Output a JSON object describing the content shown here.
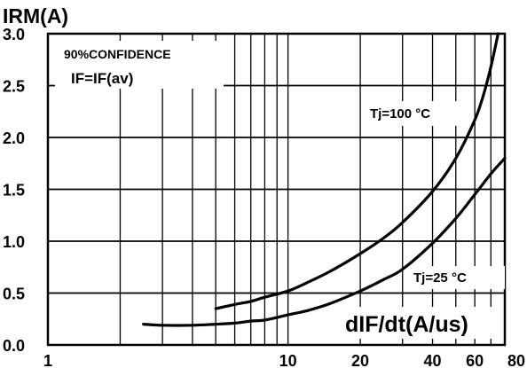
{
  "chart_data": {
    "type": "line",
    "title": "IRM(A)",
    "xlabel": "dIF/dt(A/us)",
    "ylabel": "IRM(A)",
    "x_scale": "log",
    "xlim": [
      1,
      80
    ],
    "ylim": [
      0,
      3.0
    ],
    "grid": true,
    "x_ticks": [
      1,
      10,
      20,
      40,
      60,
      80
    ],
    "x_tick_labels": [
      "1",
      "10",
      "20",
      "40",
      "60",
      "80"
    ],
    "y_ticks": [
      0.0,
      0.5,
      1.0,
      1.5,
      2.0,
      2.5,
      3.0
    ],
    "y_tick_labels": [
      "0.0",
      "0.5",
      "1.0",
      "1.5",
      "2.0",
      "2.5",
      "3.0"
    ],
    "x_gridlines": [
      2,
      3,
      4,
      5,
      6,
      7,
      8,
      9,
      10,
      20,
      30,
      40,
      50,
      60,
      70,
      80
    ],
    "annotations": [
      "90%CONFIDENCE",
      "IF=IF(av)"
    ],
    "series": [
      {
        "name": "Tj=100 °C",
        "x": [
          5,
          6,
          7,
          8,
          10,
          12,
          15,
          20,
          25,
          30,
          40,
          50,
          60,
          65,
          70,
          75
        ],
        "y": [
          0.35,
          0.39,
          0.42,
          0.46,
          0.52,
          0.6,
          0.71,
          0.88,
          1.03,
          1.18,
          1.48,
          1.8,
          2.17,
          2.4,
          2.68,
          3.0
        ]
      },
      {
        "name": "Tj=25 °C",
        "x": [
          2.5,
          3,
          4,
          5,
          6,
          7,
          8,
          10,
          12,
          15,
          20,
          25,
          30,
          40,
          50,
          60,
          70,
          80
        ],
        "y": [
          0.2,
          0.19,
          0.19,
          0.2,
          0.21,
          0.23,
          0.24,
          0.29,
          0.33,
          0.4,
          0.52,
          0.63,
          0.73,
          0.98,
          1.22,
          1.45,
          1.65,
          1.8
        ]
      }
    ]
  }
}
